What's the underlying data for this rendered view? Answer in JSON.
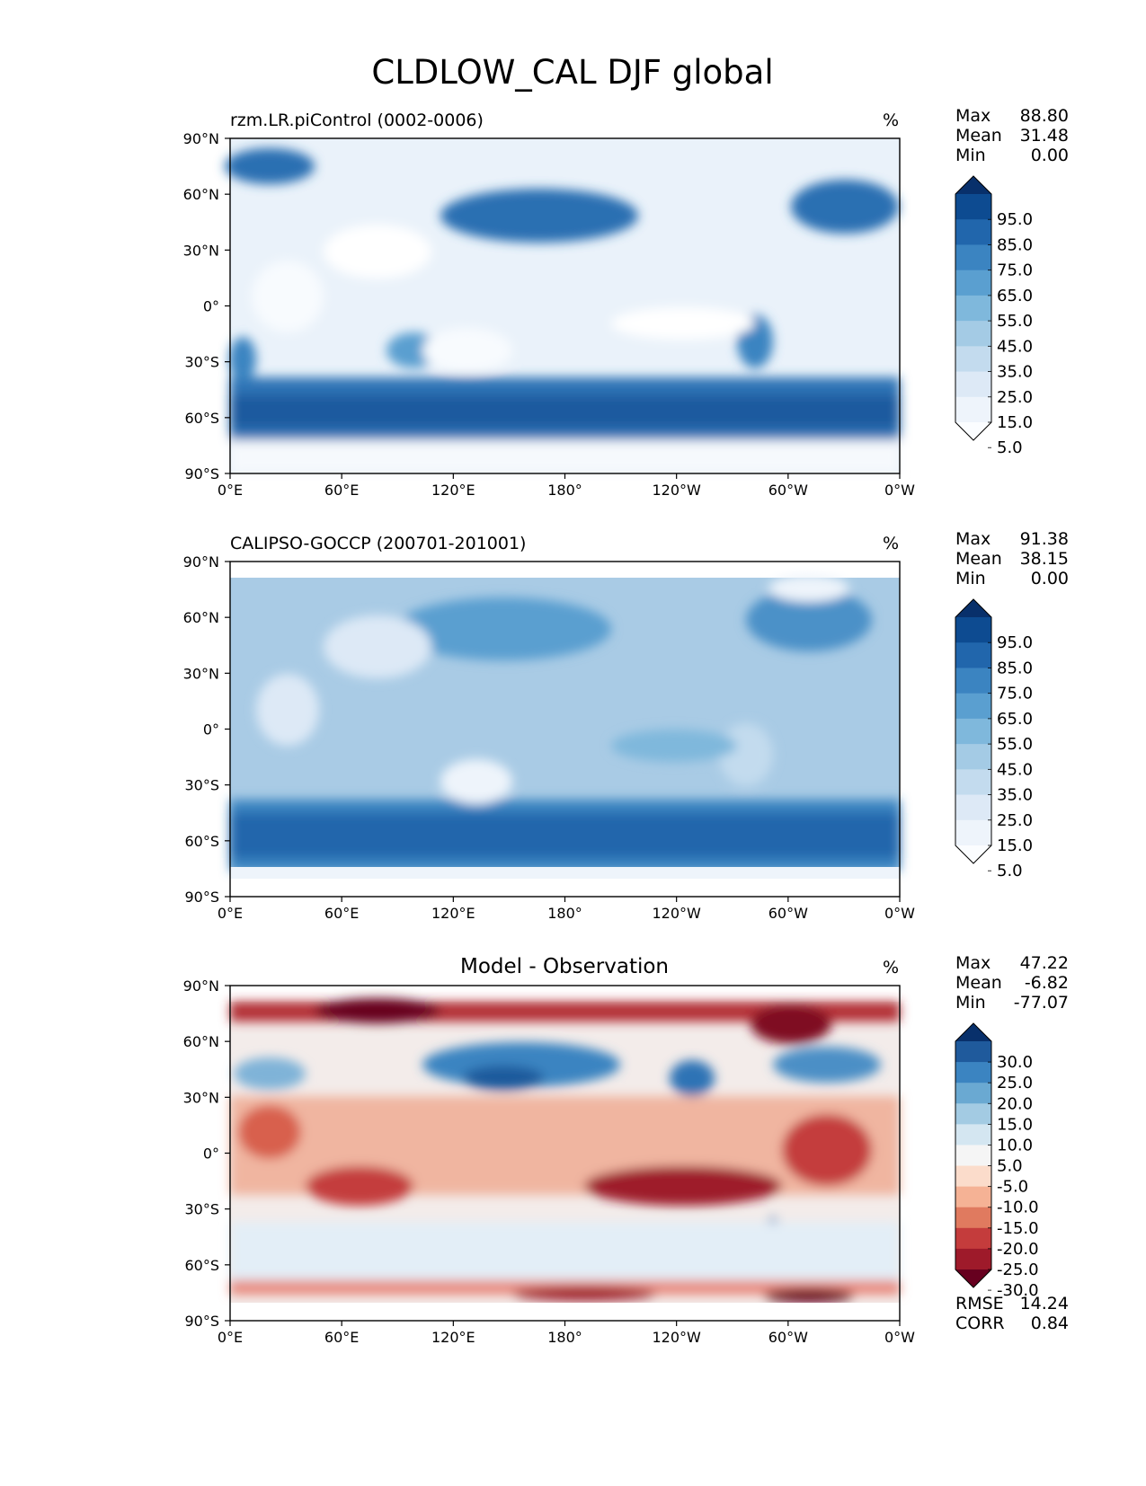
{
  "figure": {
    "title": "CLDLOW_CAL DJF global"
  },
  "chart_data": [
    {
      "type": "heatmap",
      "title": "rzm.LR.piControl (0002-0006)",
      "units": "%",
      "x_ticks": [
        "0°E",
        "60°E",
        "120°E",
        "180°",
        "120°W",
        "60°W",
        "0°W"
      ],
      "y_ticks": [
        "90°N",
        "60°N",
        "30°N",
        "0°",
        "30°S",
        "60°S",
        "90°S"
      ],
      "xlim": [
        0,
        360
      ],
      "ylim": [
        -90,
        90
      ],
      "stats": [
        {
          "label": "Max",
          "value": "88.80"
        },
        {
          "label": "Mean",
          "value": "31.48"
        },
        {
          "label": "Min",
          "value": "0.00"
        }
      ],
      "colorbar": {
        "labels": [
          "95.0",
          "85.0",
          "75.0",
          "65.0",
          "55.0",
          "45.0",
          "35.0",
          "25.0",
          "15.0",
          "5.0"
        ],
        "colors": [
          "#08306b",
          "#0d4b91",
          "#2166ac",
          "#3b84c1",
          "#5a9fd0",
          "#7fb8dc",
          "#a4cbe5",
          "#c3dbee",
          "#dde9f6",
          "#eef4fb",
          "#fbfdff"
        ],
        "extend": "both"
      }
    },
    {
      "type": "heatmap",
      "title": "CALIPSO-GOCCP (200701-201001)",
      "units": "%",
      "x_ticks": [
        "0°E",
        "60°E",
        "120°E",
        "180°",
        "120°W",
        "60°W",
        "0°W"
      ],
      "y_ticks": [
        "90°N",
        "60°N",
        "30°N",
        "0°",
        "30°S",
        "60°S",
        "90°S"
      ],
      "xlim": [
        0,
        360
      ],
      "ylim": [
        -90,
        90
      ],
      "stats": [
        {
          "label": "Max",
          "value": "91.38"
        },
        {
          "label": "Mean",
          "value": "38.15"
        },
        {
          "label": "Min",
          "value": "0.00"
        }
      ],
      "colorbar": {
        "labels": [
          "95.0",
          "85.0",
          "75.0",
          "65.0",
          "55.0",
          "45.0",
          "35.0",
          "25.0",
          "15.0",
          "5.0"
        ],
        "colors": [
          "#08306b",
          "#0d4b91",
          "#2166ac",
          "#3b84c1",
          "#5a9fd0",
          "#7fb8dc",
          "#a4cbe5",
          "#c3dbee",
          "#dde9f6",
          "#eef4fb",
          "#fbfdff"
        ],
        "extend": "both"
      }
    },
    {
      "type": "heatmap",
      "title": "Model - Observation",
      "units": "%",
      "x_ticks": [
        "0°E",
        "60°E",
        "120°E",
        "180°",
        "120°W",
        "60°W",
        "0°W"
      ],
      "y_ticks": [
        "90°N",
        "60°N",
        "30°N",
        "0°",
        "30°S",
        "60°S",
        "90°S"
      ],
      "xlim": [
        0,
        360
      ],
      "ylim": [
        -90,
        90
      ],
      "stats": [
        {
          "label": "Max",
          "value": "47.22"
        },
        {
          "label": "Mean",
          "value": "-6.82"
        },
        {
          "label": "Min",
          "value": "-77.07"
        }
      ],
      "colorbar": {
        "labels": [
          "30.0",
          "25.0",
          "20.0",
          "15.0",
          "10.0",
          "5.0",
          "-5.0",
          "-10.0",
          "-15.0",
          "-20.0",
          "-25.0",
          "-30.0"
        ],
        "colors": [
          "#08306b",
          "#1f5a9c",
          "#3b84c1",
          "#6aa9d2",
          "#a3cbe3",
          "#d4e6f1",
          "#f5f5f5",
          "#fbdccb",
          "#f5b295",
          "#e07a5f",
          "#c43c3c",
          "#9e1a2a",
          "#67001f"
        ],
        "extend": "both"
      },
      "metrics": [
        {
          "label": "RMSE",
          "value": "14.24"
        },
        {
          "label": "CORR",
          "value": "0.84"
        }
      ]
    }
  ]
}
